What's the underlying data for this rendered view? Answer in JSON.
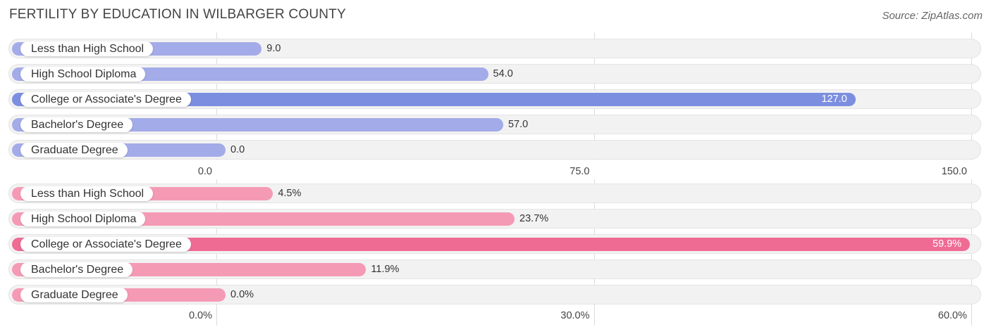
{
  "title": "FERTILITY BY EDUCATION IN WILBARGER COUNTY",
  "source": "Source: ZipAtlas.com",
  "chart_data": [
    {
      "type": "bar",
      "orientation": "horizontal",
      "categories": [
        "Less than High School",
        "High School Diploma",
        "College or Associate's Degree",
        "Bachelor's Degree",
        "Graduate Degree"
      ],
      "values": [
        9.0,
        54.0,
        127.0,
        57.0,
        0.0
      ],
      "value_labels": [
        "9.0",
        "54.0",
        "127.0",
        "57.0",
        "0.0"
      ],
      "xlim": [
        0,
        150
      ],
      "ticks": [
        0,
        75,
        150
      ],
      "tick_labels": [
        "0.0",
        "75.0",
        "150.0"
      ],
      "color": "#a3abe8",
      "highlight_color": "#7c8ee0"
    },
    {
      "type": "bar",
      "orientation": "horizontal",
      "categories": [
        "Less than High School",
        "High School Diploma",
        "College or Associate's Degree",
        "Bachelor's Degree",
        "Graduate Degree"
      ],
      "values": [
        4.5,
        23.7,
        59.9,
        11.9,
        0.0
      ],
      "value_labels": [
        "4.5%",
        "23.7%",
        "59.9%",
        "11.9%",
        "0.0%"
      ],
      "xlim": [
        0,
        60
      ],
      "ticks": [
        0,
        30,
        60
      ],
      "tick_labels": [
        "0.0%",
        "30.0%",
        "60.0%"
      ],
      "color": "#f59ab5",
      "highlight_color": "#ef6b94"
    }
  ]
}
